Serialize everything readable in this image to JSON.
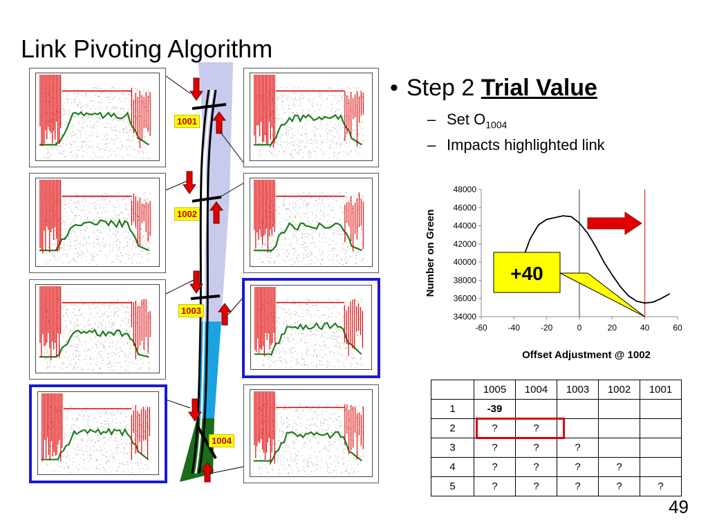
{
  "slide": {
    "title": "Link Pivoting Algorithm",
    "number": "49"
  },
  "bullets": {
    "main_prefix": "Step 2 ",
    "main_emphasis": "Trial Value",
    "sub1_text": "Set O",
    "sub1_subscript": "1004",
    "sub2_text": "Impacts highlighted link"
  },
  "intersections": {
    "labels": [
      "1001",
      "1002",
      "1003",
      "1004"
    ]
  },
  "colors": {
    "corridor_light": "#c8cbec",
    "corridor_blue": "#1aa3e0",
    "corridor_green": "#1a6e1a",
    "arrow_red": "#e00000",
    "panel_highlight": "#1a1ad0",
    "callout_fill": "#ffff00"
  },
  "chart_data": {
    "type": "line",
    "xlabel": "Offset Adjustment @ 1002",
    "ylabel": "Number on Green",
    "xlim": [
      -60,
      60
    ],
    "ylim": [
      34000,
      48000
    ],
    "x_ticks": [
      "-60",
      "-40",
      "-20",
      "0",
      "20",
      "40",
      "60"
    ],
    "y_ticks": [
      "34000",
      "36000",
      "38000",
      "40000",
      "42000",
      "44000",
      "46000",
      "48000"
    ],
    "x": [
      -35,
      -30,
      -25,
      -20,
      -15,
      -10,
      -5,
      0,
      5,
      10,
      15,
      20,
      25,
      30,
      35,
      40,
      45,
      50,
      55
    ],
    "y": [
      40200,
      42600,
      44100,
      44700,
      44900,
      45100,
      45000,
      44300,
      43200,
      41700,
      40000,
      38600,
      37300,
      36300,
      35700,
      35500,
      35600,
      36000,
      36500
    ],
    "vline_current": 0,
    "vline_trial": 40,
    "callout_label": "+40"
  },
  "table": {
    "headers": [
      "",
      "1005",
      "1004",
      "1003",
      "1002",
      "1001"
    ],
    "rows": [
      [
        "1",
        "-39",
        "",
        "",
        "",
        ""
      ],
      [
        "2",
        "?",
        "?",
        "",
        "",
        ""
      ],
      [
        "3",
        "?",
        "?",
        "?",
        "",
        ""
      ],
      [
        "4",
        "?",
        "?",
        "?",
        "?",
        ""
      ],
      [
        "5",
        "?",
        "?",
        "?",
        "?",
        "?"
      ]
    ]
  }
}
